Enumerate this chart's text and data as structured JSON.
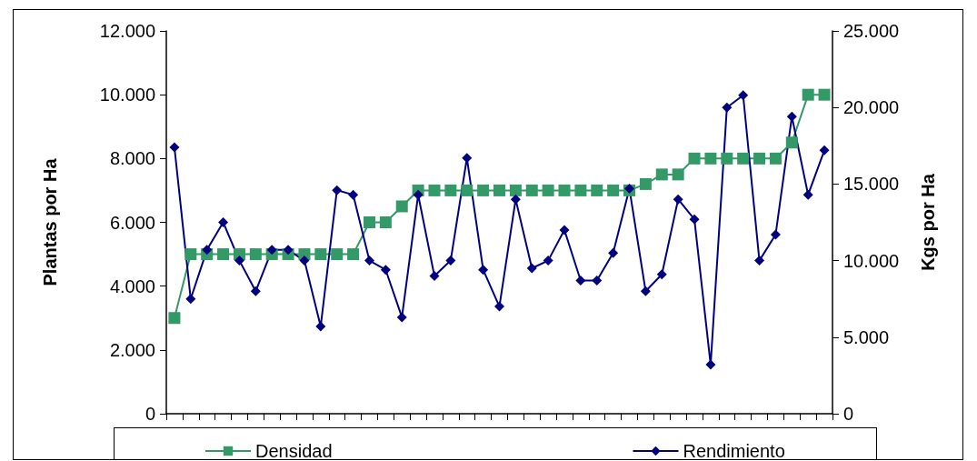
{
  "chart_data": {
    "type": "line",
    "ylabel": "Plantas por Ha",
    "y2label": "Kgs por Ha",
    "categories": [
      null,
      null,
      null,
      null,
      null,
      null,
      null,
      null,
      null,
      null,
      null,
      null,
      null,
      null,
      null,
      null,
      null,
      null,
      null,
      null,
      null,
      null,
      null,
      null,
      null,
      null,
      null,
      null,
      null,
      null,
      null,
      null,
      null,
      null,
      null,
      null,
      null,
      null,
      null,
      null,
      null
    ],
    "series": [
      {
        "name": "Densidad",
        "color": "#339966",
        "marker": "square",
        "values": [
          3000,
          5000,
          5000,
          5000,
          5000,
          5000,
          5000,
          5000,
          5000,
          5000,
          5000,
          5000,
          6000,
          6000,
          6500,
          7000,
          7000,
          7000,
          7000,
          7000,
          7000,
          7000,
          7000,
          7000,
          7000,
          7000,
          7000,
          7000,
          7000,
          7200,
          7500,
          7500,
          8000,
          8000,
          8000,
          8000,
          8000,
          8000,
          8500,
          10000,
          10000
        ]
      },
      {
        "name": "Rendimiento",
        "color": "#000080",
        "marker": "diamond",
        "axis": "y2",
        "values": [
          17400,
          7500,
          10700,
          12500,
          10000,
          8000,
          10700,
          10700,
          10000,
          5700,
          14600,
          14300,
          10000,
          9400,
          6300,
          14300,
          9000,
          10000,
          16700,
          9400,
          7000,
          14000,
          9500,
          10000,
          12000,
          8700,
          8700,
          10500,
          14700,
          8000,
          9100,
          14000,
          12700,
          3200,
          20000,
          20800,
          10000,
          11700,
          19400,
          14300,
          17200
        ]
      }
    ],
    "ylim": [
      0,
      12000
    ],
    "yticks": [
      {
        "value": 0,
        "label": "0"
      },
      {
        "value": 2000,
        "label": "2.000"
      },
      {
        "value": 4000,
        "label": "4.000"
      },
      {
        "value": 6000,
        "label": "6.000"
      },
      {
        "value": 8000,
        "label": "8.000"
      },
      {
        "value": 10000,
        "label": "10.000"
      },
      {
        "value": 12000,
        "label": "12.000"
      }
    ],
    "y2lim": [
      0,
      25000
    ],
    "y2ticks": [
      {
        "value": 0,
        "label": "0"
      },
      {
        "value": 5000,
        "label": "5.000"
      },
      {
        "value": 10000,
        "label": "10.000"
      },
      {
        "value": 15000,
        "label": "15.000"
      },
      {
        "value": 20000,
        "label": "20.000"
      },
      {
        "value": 25000,
        "label": "25.000"
      }
    ],
    "grid": false,
    "legend": "bottom",
    "line_style": "solid"
  }
}
